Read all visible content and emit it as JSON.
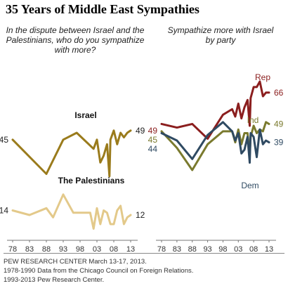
{
  "title": "35 Years of Middle East Sympathies",
  "notes": {
    "source": "PEW RESEARCH CENTER March 13-17, 2013.",
    "line2": "1978-1990 Data from the Chicago Council on Foreign Relations.",
    "line3": "1993-2013 Pew Research Center."
  },
  "colors": {
    "israel": "#9a7b1c",
    "palestinians": "#e3c98a",
    "rep": "#8b1e1e",
    "ind": "#7a7a2e",
    "dem": "#2f4a62",
    "axis": "#777777"
  },
  "chart_data": [
    {
      "type": "line",
      "subtitle": "In the dispute between Israel and the Palestinians, who do you sympathize with more?",
      "x_tick_labels": [
        "78",
        "83",
        "88",
        "93",
        "98",
        "03",
        "08",
        "13"
      ],
      "x_range": [
        1978,
        2013
      ],
      "y_range": [
        0,
        60
      ],
      "series": [
        {
          "name": "Israel",
          "x": [
            1978,
            1988,
            1993,
            1997,
            2002,
            2003,
            2004,
            2005,
            2006,
            2006.7,
            2007,
            2008,
            2009,
            2010,
            2011,
            2012,
            2013
          ],
          "values": [
            45,
            30,
            45,
            48,
            41,
            45,
            35,
            38,
            43,
            29,
            45,
            49,
            43,
            48,
            46,
            48,
            49
          ],
          "start_label": "45",
          "end_label": "49"
        },
        {
          "name": "The Palestinians",
          "x": [
            1978,
            1983,
            1988,
            1990,
            1993,
            1996,
            2001,
            2002,
            2003,
            2004,
            2005,
            2006,
            2007,
            2008,
            2009,
            2010,
            2011,
            2012,
            2013
          ],
          "values": [
            14,
            12,
            15,
            11,
            21,
            13,
            13,
            6,
            15,
            8,
            14,
            13,
            8,
            8,
            14,
            16,
            8,
            11,
            12
          ],
          "start_label": "14",
          "end_label": "12"
        }
      ]
    },
    {
      "type": "line",
      "subtitle": "Sympathize more with Israel by party",
      "x_tick_labels": [
        "78",
        "83",
        "88",
        "93",
        "98",
        "03",
        "08",
        "13"
      ],
      "x_range": [
        1978,
        2013
      ],
      "y_range": [
        0,
        80
      ],
      "series": [
        {
          "name": "Rep",
          "x": [
            1978,
            1983,
            1988,
            1993,
            1998,
            2001,
            2002,
            2003,
            2004,
            2005,
            2006,
            2006.7,
            2007,
            2008,
            2009,
            2010,
            2011,
            2012,
            2013
          ],
          "values": [
            49,
            47,
            49,
            41,
            54,
            57,
            53,
            60,
            52,
            58,
            62,
            48,
            63,
            69,
            69,
            72,
            64,
            66,
            66
          ],
          "start_label": "49",
          "end_label": "66"
        },
        {
          "name": "Ind",
          "x": [
            1978,
            1983,
            1988,
            1993,
            1998,
            2001,
            2002,
            2003,
            2004,
            2005,
            2006,
            2006.7,
            2007,
            2008,
            2009,
            2010,
            2011,
            2012,
            2013
          ],
          "values": [
            45,
            36,
            24,
            38,
            45,
            45,
            39,
            46,
            38,
            44,
            44,
            32,
            42,
            48,
            44,
            46,
            45,
            50,
            49
          ],
          "start_label": "45",
          "end_label": "49"
        },
        {
          "name": "Dem",
          "x": [
            1978,
            1983,
            1988,
            1993,
            1998,
            2001,
            2002,
            2003,
            2004,
            2005,
            2006,
            2006.7,
            2007,
            2008,
            2009,
            2010,
            2011,
            2012,
            2013
          ],
          "values": [
            44,
            40,
            30,
            43,
            50,
            45,
            40,
            44,
            33,
            35,
            42,
            28,
            44,
            42,
            31,
            46,
            38,
            40,
            39
          ],
          "start_label": "44",
          "end_label": "39"
        }
      ]
    }
  ]
}
